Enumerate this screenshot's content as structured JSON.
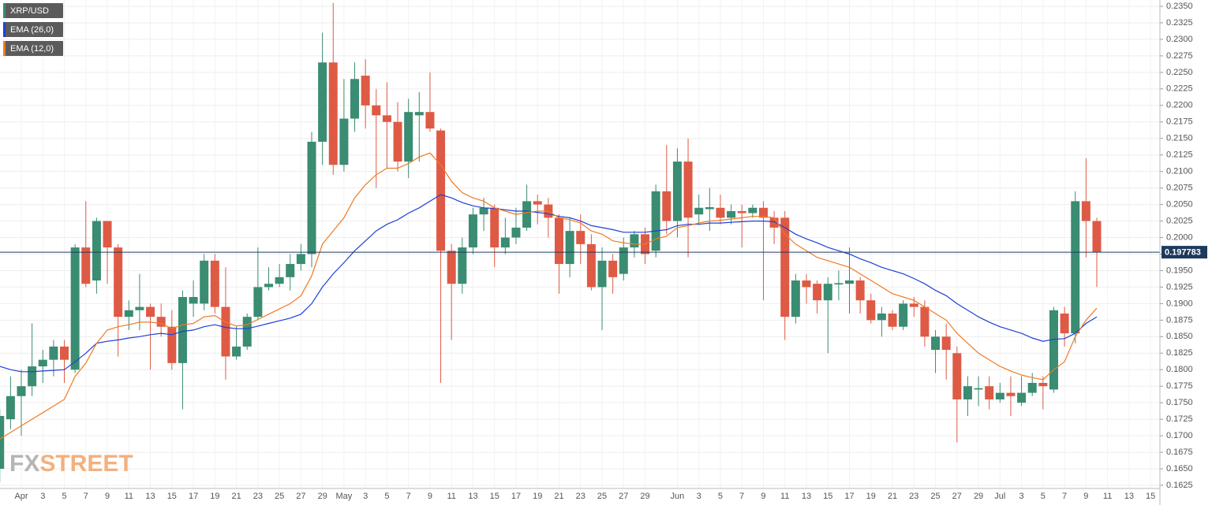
{
  "chart_data": {
    "type": "candlestick",
    "legend": "top-left",
    "grid": true,
    "watermark": {
      "prefix": "FX",
      "suffix": "STREET"
    },
    "last_price": 0.197783,
    "categories": [
      null,
      null,
      "Apr",
      null,
      "3",
      null,
      "5",
      null,
      "7",
      null,
      "9",
      null,
      "11",
      null,
      "13",
      null,
      "15",
      null,
      "17",
      null,
      "19",
      null,
      "21",
      null,
      "23",
      null,
      "25",
      null,
      "27",
      null,
      "29",
      null,
      "May",
      null,
      "3",
      null,
      "5",
      null,
      "7",
      null,
      "9",
      null,
      "11",
      null,
      "13",
      null,
      "15",
      null,
      "17",
      null,
      "19",
      null,
      "21",
      null,
      "23",
      null,
      "25",
      null,
      "27",
      null,
      "29",
      null,
      null,
      "Jun",
      null,
      "3",
      null,
      "5",
      null,
      "7",
      null,
      "9",
      null,
      "11",
      null,
      "13",
      null,
      "15",
      null,
      "17",
      null,
      "19",
      null,
      "21",
      null,
      "23",
      null,
      "25",
      null,
      "27",
      null,
      "29",
      null,
      "Jul",
      null,
      "3",
      null,
      "5",
      null,
      "7",
      null,
      "9",
      null,
      "11",
      null,
      "13",
      null,
      "15"
    ],
    "ylim": [
      0.1625,
      0.235
    ],
    "yticks": [
      {
        "value": 0.235,
        "label": "0.2350"
      },
      {
        "value": 0.2325,
        "label": "0.2325"
      },
      {
        "value": 0.23,
        "label": "0.2300"
      },
      {
        "value": 0.2275,
        "label": "0.2275"
      },
      {
        "value": 0.225,
        "label": "0.2250"
      },
      {
        "value": 0.2225,
        "label": "0.2225"
      },
      {
        "value": 0.22,
        "label": "0.2200"
      },
      {
        "value": 0.2175,
        "label": "0.2175"
      },
      {
        "value": 0.215,
        "label": "0.2150"
      },
      {
        "value": 0.2125,
        "label": "0.2125"
      },
      {
        "value": 0.21,
        "label": "0.2100"
      },
      {
        "value": 0.2075,
        "label": "0.2075"
      },
      {
        "value": 0.205,
        "label": "0.2050"
      },
      {
        "value": 0.2025,
        "label": "0.2025"
      },
      {
        "value": 0.2,
        "label": "0.2000"
      },
      {
        "value": 0.1975,
        "label": "0.1975"
      },
      {
        "value": 0.195,
        "label": "0.1950"
      },
      {
        "value": 0.1925,
        "label": "0.1925"
      },
      {
        "value": 0.19,
        "label": "0.1900"
      },
      {
        "value": 0.1875,
        "label": "0.1875"
      },
      {
        "value": 0.185,
        "label": "0.1850"
      },
      {
        "value": 0.1825,
        "label": "0.1825"
      },
      {
        "value": 0.18,
        "label": "0.1800"
      },
      {
        "value": 0.1775,
        "label": "0.1775"
      },
      {
        "value": 0.175,
        "label": "0.1750"
      },
      {
        "value": 0.1725,
        "label": "0.1725"
      },
      {
        "value": 0.17,
        "label": "0.1700"
      },
      {
        "value": 0.1675,
        "label": "0.1675"
      },
      {
        "value": 0.165,
        "label": "0.1650"
      },
      {
        "value": 0.1625,
        "label": "0.1625"
      }
    ],
    "series": [
      {
        "name": "XRP/USD",
        "color": "#3a8c72",
        "down_color": "#de5a45",
        "open": [
          0.165,
          0.1725,
          0.176,
          0.1775,
          0.1805,
          0.1815,
          0.1835,
          0.18,
          0.1985,
          0.1935,
          0.2025,
          0.1985,
          0.188,
          0.189,
          0.1895,
          0.188,
          0.1865,
          0.181,
          0.19,
          0.19,
          0.1965,
          0.1895,
          0.182,
          0.1835,
          0.188,
          0.1925,
          0.193,
          0.194,
          0.196,
          0.1975,
          0.2145,
          0.2265,
          0.211,
          0.218,
          0.2245,
          0.22,
          0.2185,
          0.2175,
          0.2115,
          0.2185,
          0.219,
          0.2162,
          0.198,
          0.193,
          0.1985,
          0.2035,
          0.2045,
          0.1985,
          0.2,
          0.2015,
          0.2055,
          0.205,
          0.203,
          0.196,
          0.201,
          0.199,
          0.1925,
          0.1965,
          0.1945,
          0.1985,
          0.2005,
          0.198,
          0.207,
          0.2025,
          0.2115,
          0.2035,
          0.2043,
          0.2045,
          0.203,
          0.204,
          0.2037,
          0.2045,
          0.203,
          0.203,
          0.188,
          0.1935,
          0.193,
          0.1905,
          0.1929,
          0.193,
          0.1935,
          0.1905,
          0.1875,
          0.1885,
          0.1865,
          0.19,
          0.1895,
          0.183,
          0.185,
          0.1825,
          0.1755,
          0.177,
          0.1775,
          0.1755,
          0.1765,
          0.175,
          0.1765,
          0.178,
          0.177,
          0.1885,
          0.1855,
          0.2055,
          0.2025,
          null,
          null,
          null,
          null,
          null
        ],
        "high": [
          0.174,
          0.179,
          0.18,
          0.187,
          0.183,
          0.1845,
          0.1845,
          0.199,
          0.2055,
          0.203,
          0.2025,
          0.199,
          0.1905,
          0.1945,
          0.19,
          0.19,
          0.189,
          0.192,
          0.1935,
          0.1975,
          0.1975,
          0.1955,
          0.1865,
          0.1885,
          0.1985,
          0.1955,
          0.196,
          0.1975,
          0.199,
          0.216,
          0.231,
          0.2355,
          0.224,
          0.2265,
          0.227,
          0.2225,
          0.2235,
          0.2205,
          0.221,
          0.222,
          0.225,
          0.2165,
          0.199,
          0.2,
          0.2045,
          0.206,
          0.205,
          0.203,
          0.2045,
          0.208,
          0.2065,
          0.206,
          0.2035,
          0.203,
          0.2035,
          0.2005,
          0.1985,
          0.1975,
          0.2,
          0.201,
          0.2015,
          0.208,
          0.214,
          0.2135,
          0.215,
          0.2065,
          0.2075,
          0.2065,
          0.205,
          0.205,
          0.205,
          0.2055,
          0.204,
          0.204,
          0.1945,
          0.1945,
          0.1935,
          0.194,
          0.195,
          0.1985,
          0.194,
          0.1915,
          0.1895,
          0.189,
          0.1905,
          0.191,
          0.1905,
          0.186,
          0.187,
          0.1835,
          0.179,
          0.179,
          0.179,
          0.178,
          0.179,
          0.179,
          0.1795,
          0.179,
          0.1895,
          0.1895,
          0.207,
          0.212,
          0.203,
          null,
          null,
          null,
          null,
          null
        ],
        "low": [
          0.163,
          0.171,
          0.17,
          0.176,
          0.178,
          0.179,
          0.178,
          0.1795,
          0.1925,
          0.1915,
          0.193,
          0.182,
          0.186,
          0.186,
          0.18,
          0.185,
          0.18,
          0.174,
          0.188,
          0.189,
          0.1885,
          0.1785,
          0.1815,
          0.183,
          0.1875,
          0.192,
          0.1925,
          0.192,
          0.195,
          0.1955,
          0.211,
          0.2095,
          0.21,
          0.216,
          0.2165,
          0.2075,
          0.2105,
          0.21,
          0.209,
          0.2115,
          0.216,
          0.178,
          0.1845,
          0.1915,
          0.1975,
          0.201,
          0.1955,
          0.1975,
          0.199,
          0.201,
          0.202,
          0.2,
          0.1915,
          0.194,
          0.196,
          0.192,
          0.186,
          0.1915,
          0.1935,
          0.197,
          0.196,
          0.197,
          0.2005,
          0.2,
          0.197,
          0.202,
          0.201,
          0.202,
          0.202,
          0.1985,
          0.203,
          0.1905,
          0.199,
          0.1845,
          0.187,
          0.19,
          0.1885,
          0.1825,
          0.1905,
          0.1885,
          0.1885,
          0.187,
          0.185,
          0.186,
          0.186,
          0.188,
          0.1835,
          0.1795,
          0.1785,
          0.169,
          0.173,
          0.1745,
          0.174,
          0.175,
          0.173,
          0.1745,
          0.176,
          0.174,
          0.1765,
          0.1835,
          0.184,
          0.197,
          0.1925,
          null,
          null,
          null,
          null,
          null
        ],
        "close": [
          0.173,
          0.176,
          0.1775,
          0.1805,
          0.1815,
          0.1835,
          0.1815,
          0.1985,
          0.193,
          0.2025,
          0.1985,
          0.188,
          0.189,
          0.1895,
          0.188,
          0.1865,
          0.181,
          0.191,
          0.191,
          0.1965,
          0.1895,
          0.182,
          0.1835,
          0.188,
          0.1925,
          0.193,
          0.194,
          0.196,
          0.1975,
          0.2145,
          0.2265,
          0.211,
          0.218,
          0.224,
          0.22,
          0.2185,
          0.2175,
          0.2115,
          0.219,
          0.219,
          0.2165,
          0.198,
          0.193,
          0.1985,
          0.2035,
          0.2045,
          0.1985,
          0.2,
          0.2015,
          0.2055,
          0.205,
          0.203,
          0.196,
          0.201,
          0.199,
          0.1925,
          0.1965,
          0.194,
          0.1985,
          0.2005,
          0.1975,
          0.207,
          0.2025,
          0.2115,
          0.203,
          0.2045,
          0.2046,
          0.203,
          0.204,
          0.2037,
          0.2045,
          0.203,
          0.2015,
          0.188,
          0.1935,
          0.1925,
          0.1905,
          0.193,
          0.1931,
          0.1935,
          0.1905,
          0.1875,
          0.1885,
          0.1865,
          0.19,
          0.1895,
          0.185,
          0.185,
          0.183,
          0.1755,
          0.1775,
          0.1772,
          0.1755,
          0.1765,
          0.176,
          0.1765,
          0.178,
          0.1775,
          0.189,
          0.1855,
          0.2055,
          0.2025,
          0.197783,
          null,
          null,
          null,
          null,
          null
        ]
      },
      {
        "name": "EMA (26,0)",
        "color": "#1f3fd6",
        "values": [
          0.1805,
          0.18,
          0.1797,
          0.1797,
          0.1798,
          0.1799,
          0.18,
          0.1812,
          0.1825,
          0.184,
          0.1843,
          0.1845,
          0.1848,
          0.185,
          0.1853,
          0.1855,
          0.1853,
          0.1858,
          0.186,
          0.1865,
          0.1868,
          0.1864,
          0.1862,
          0.1862,
          0.1866,
          0.187,
          0.1874,
          0.1878,
          0.1884,
          0.19,
          0.1925,
          0.1945,
          0.1962,
          0.198,
          0.1995,
          0.201,
          0.202,
          0.2027,
          0.2037,
          0.2045,
          0.2055,
          0.2065,
          0.206,
          0.2053,
          0.2048,
          0.2045,
          0.2044,
          0.2042,
          0.204,
          0.204,
          0.2038,
          0.2036,
          0.2032,
          0.203,
          0.2025,
          0.2018,
          0.2015,
          0.2012,
          0.2008,
          0.2008,
          0.2008,
          0.201,
          0.2012,
          0.2018,
          0.202,
          0.202,
          0.2022,
          0.2022,
          0.2023,
          0.2024,
          0.2025,
          0.2025,
          0.2024,
          0.2015,
          0.2005,
          0.1998,
          0.1992,
          0.1985,
          0.198,
          0.1975,
          0.1968,
          0.1962,
          0.1955,
          0.195,
          0.1945,
          0.1938,
          0.193,
          0.192,
          0.1912,
          0.19,
          0.189,
          0.188,
          0.1872,
          0.1865,
          0.186,
          0.1855,
          0.1848,
          0.1843,
          0.1846,
          0.1847,
          0.1855,
          0.187,
          0.188,
          null,
          null,
          null,
          null,
          null
        ]
      },
      {
        "name": "EMA (12,0)",
        "color": "#ef7a24",
        "values": [
          0.1695,
          0.1705,
          0.1715,
          0.1725,
          0.1735,
          0.1745,
          0.1755,
          0.179,
          0.181,
          0.184,
          0.186,
          0.1865,
          0.1868,
          0.1872,
          0.1872,
          0.187,
          0.1862,
          0.1868,
          0.187,
          0.188,
          0.1882,
          0.1872,
          0.1866,
          0.1868,
          0.1876,
          0.1884,
          0.1892,
          0.19,
          0.1912,
          0.1942,
          0.199,
          0.201,
          0.203,
          0.206,
          0.208,
          0.2095,
          0.2105,
          0.2105,
          0.2112,
          0.2122,
          0.2128,
          0.211,
          0.2085,
          0.2068,
          0.206,
          0.2055,
          0.2045,
          0.204,
          0.2035,
          0.2038,
          0.204,
          0.204,
          0.203,
          0.2027,
          0.2022,
          0.201,
          0.2005,
          0.1995,
          0.1992,
          0.199,
          0.199,
          0.1998,
          0.2002,
          0.2015,
          0.2018,
          0.2022,
          0.2025,
          0.2026,
          0.2028,
          0.203,
          0.2032,
          0.2032,
          0.203,
          0.2005,
          0.199,
          0.198,
          0.197,
          0.1965,
          0.196,
          0.1955,
          0.1945,
          0.1935,
          0.1925,
          0.1915,
          0.191,
          0.1905,
          0.1895,
          0.1885,
          0.1875,
          0.1855,
          0.184,
          0.1825,
          0.1815,
          0.1805,
          0.1798,
          0.1792,
          0.1788,
          0.1785,
          0.18,
          0.1812,
          0.185,
          0.1875,
          0.1893,
          null,
          null,
          null,
          null,
          null
        ]
      }
    ]
  }
}
